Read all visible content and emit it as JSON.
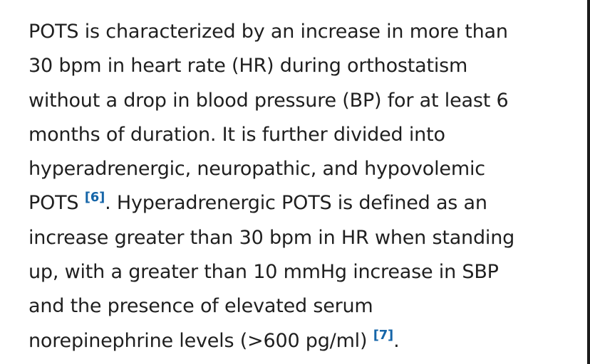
{
  "article": {
    "lines": [
      "POTS is characterized by an increase in more than",
      "30 bpm in heart rate (HR) during orthostatism",
      "without a drop in blood pressure (BP) for at least 6",
      "months of duration. It is further divided into",
      "hyperadrenergic, neuropathic, and hypovolemic"
    ],
    "line6_before": "POTS ",
    "ref1": "[6]",
    "line6_after": ". Hyperadrenergic POTS is defined as an",
    "lines_b": [
      "increase greater than 30 bpm in HR when standing",
      "up, with a greater than 10 mmHg increase in SBP",
      "and the presence of elevated serum"
    ],
    "last_before": "norepinephrine levels (>600 pg/ml) ",
    "ref2": "[7]",
    "last_after": "."
  },
  "colors": {
    "text": "#1f1f1f",
    "reference_link": "#1565a8",
    "background": "#ffffff"
  }
}
